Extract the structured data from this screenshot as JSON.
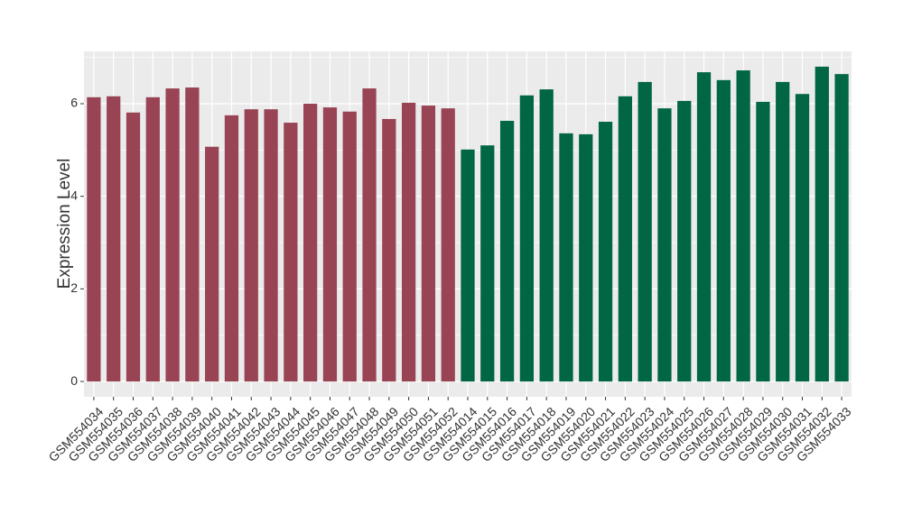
{
  "chart_data": {
    "type": "bar",
    "y_label": "Expression Level",
    "categories": [
      "GSM554034",
      "GSM554035",
      "GSM554036",
      "GSM554037",
      "GSM554038",
      "GSM554039",
      "GSM554040",
      "GSM554041",
      "GSM554042",
      "GSM554043",
      "GSM554044",
      "GSM554045",
      "GSM554046",
      "GSM554047",
      "GSM554048",
      "GSM554049",
      "GSM554050",
      "GSM554051",
      "GSM554052",
      "GSM554014",
      "GSM554015",
      "GSM554016",
      "GSM554017",
      "GSM554018",
      "GSM554019",
      "GSM554020",
      "GSM554021",
      "GSM554022",
      "GSM554023",
      "GSM554024",
      "GSM554025",
      "GSM554026",
      "GSM554027",
      "GSM554028",
      "GSM554029",
      "GSM554030",
      "GSM554031",
      "GSM554032",
      "GSM554033"
    ],
    "values": [
      6.14,
      6.16,
      5.81,
      6.14,
      6.33,
      6.35,
      5.07,
      5.75,
      5.88,
      5.88,
      5.59,
      6.0,
      5.92,
      5.83,
      6.33,
      5.67,
      6.02,
      5.96,
      5.9,
      5.01,
      5.1,
      5.63,
      6.18,
      6.31,
      5.36,
      5.34,
      5.61,
      6.16,
      6.47,
      5.9,
      6.06,
      6.68,
      6.51,
      6.72,
      6.04,
      6.47,
      6.21,
      6.8,
      6.64
    ],
    "colors": [
      "#994455",
      "#994455",
      "#994455",
      "#994455",
      "#994455",
      "#994455",
      "#994455",
      "#994455",
      "#994455",
      "#994455",
      "#994455",
      "#994455",
      "#994455",
      "#994455",
      "#994455",
      "#994455",
      "#994455",
      "#994455",
      "#994455",
      "#006644",
      "#006644",
      "#006644",
      "#006644",
      "#006644",
      "#006644",
      "#006644",
      "#006644",
      "#006644",
      "#006644",
      "#006644",
      "#006644",
      "#006644",
      "#006644",
      "#006644",
      "#006644",
      "#006644",
      "#006644",
      "#006644",
      "#006644"
    ],
    "ylim": [
      -0.33,
      7.13
    ],
    "yticks": [
      0,
      2,
      4,
      6
    ],
    "minor_yticks": [
      1,
      3,
      5,
      7
    ],
    "grid": true
  }
}
